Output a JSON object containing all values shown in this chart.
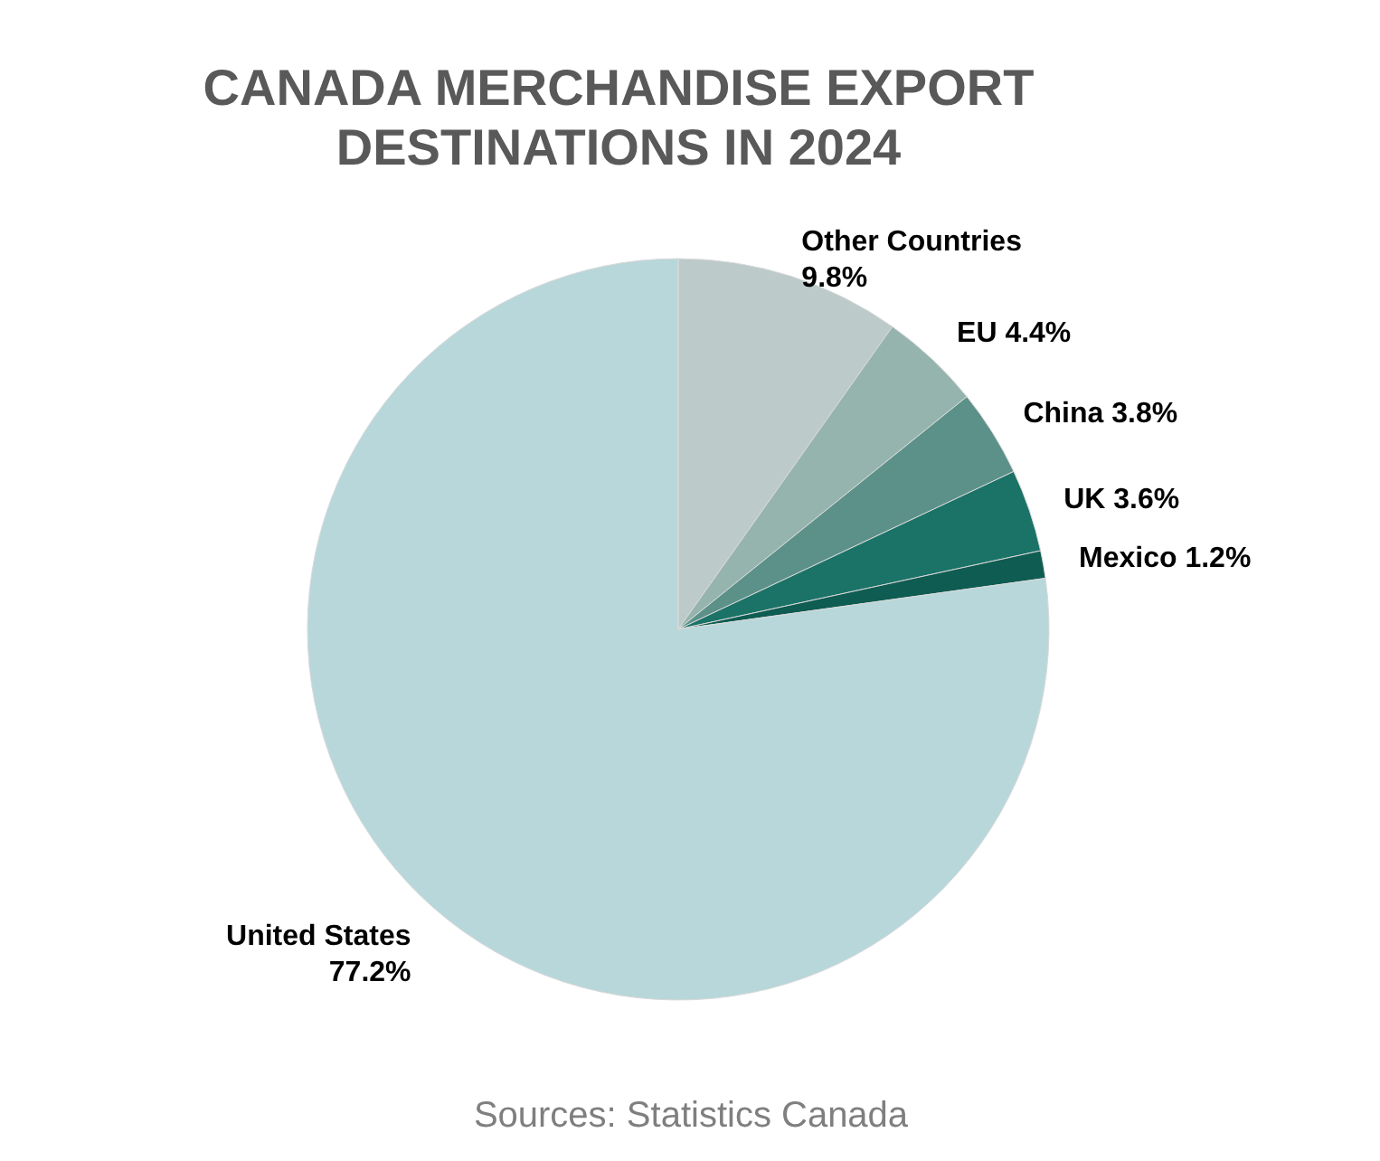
{
  "chart_data": {
    "type": "pie",
    "title": "CANADA MERCHANDISE EXPORT DESTINATIONS IN 2024",
    "categories": [
      "Other Countries",
      "EU",
      "China",
      "UK",
      "Mexico",
      "United States"
    ],
    "values": [
      9.8,
      4.4,
      3.8,
      3.6,
      1.2,
      77.2
    ],
    "value_labels": [
      "9.8%",
      "4.4%",
      "3.8%",
      "3.6%",
      "1.2%",
      "77.2%"
    ],
    "colors": [
      "#bccaca",
      "#96b4ae",
      "#5b9189",
      "#1b7368",
      "#0f5c52",
      "#b8d7da"
    ],
    "annotations": [
      "Sources: Statistics Canada"
    ]
  }
}
